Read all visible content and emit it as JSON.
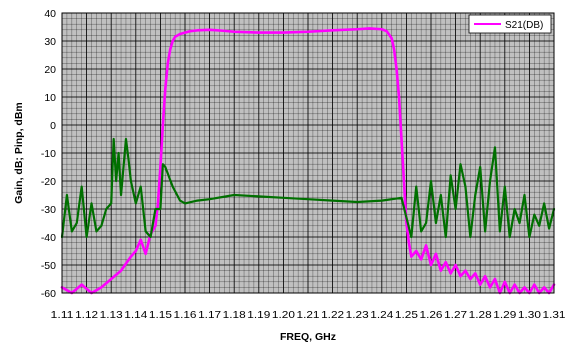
{
  "chart_data": {
    "type": "line",
    "title": "",
    "xlabel": "FREQ, GHz",
    "ylabel": "Gain, dB; Pinp, dBm",
    "xlim": [
      1.11,
      1.31
    ],
    "ylim": [
      -60,
      40
    ],
    "y_ticks": [
      40,
      30,
      20,
      10,
      0,
      -10,
      -20,
      -30,
      -40,
      -50,
      -60
    ],
    "x_ticks": [
      "1.11",
      "1.12",
      "1.13",
      "1.14",
      "1.15",
      "1.16",
      "1.17",
      "1.18",
      "1.19",
      "1.20",
      "1.21",
      "1.22",
      "1.23",
      "1.24",
      "1.25",
      "1.26",
      "1.27",
      "1.28",
      "1.29",
      "1.30",
      "1.31"
    ],
    "x_minor_step": 0.002,
    "y_minor_step": 2,
    "grid": true,
    "plot_background": "#c0c0c0",
    "grid_color": "#000000",
    "legend": {
      "placement": "top-right",
      "entries": [
        "S21(DB)"
      ]
    },
    "series": [
      {
        "name": "S21(DB)",
        "color": "#ff00ff",
        "x": [
          1.11,
          1.114,
          1.118,
          1.122,
          1.126,
          1.13,
          1.134,
          1.138,
          1.14,
          1.142,
          1.144,
          1.146,
          1.148,
          1.149,
          1.15,
          1.151,
          1.152,
          1.153,
          1.154,
          1.155,
          1.156,
          1.158,
          1.16,
          1.162,
          1.165,
          1.17,
          1.175,
          1.18,
          1.19,
          1.2,
          1.21,
          1.22,
          1.23,
          1.235,
          1.24,
          1.242,
          1.244,
          1.245,
          1.246,
          1.247,
          1.248,
          1.249,
          1.25,
          1.251,
          1.252,
          1.254,
          1.256,
          1.258,
          1.26,
          1.262,
          1.264,
          1.266,
          1.268,
          1.27,
          1.272,
          1.274,
          1.276,
          1.278,
          1.28,
          1.282,
          1.284,
          1.286,
          1.288,
          1.29,
          1.292,
          1.294,
          1.296,
          1.298,
          1.3,
          1.302,
          1.304,
          1.306,
          1.308,
          1.31
        ],
        "y": [
          -58,
          -60,
          -57,
          -60,
          -58,
          -55,
          -52,
          -47,
          -45,
          -41,
          -46,
          -39,
          -36,
          -28,
          -15,
          0,
          13,
          22,
          27,
          30,
          31.5,
          32.5,
          33,
          33.5,
          33.8,
          34,
          33.7,
          33.3,
          33,
          33,
          33.3,
          33.8,
          34.2,
          34.5,
          34.2,
          33.5,
          31,
          27,
          20,
          10,
          -5,
          -20,
          -35,
          -42,
          -47,
          -45,
          -48,
          -43,
          -50,
          -46,
          -52,
          -49,
          -53,
          -50,
          -54,
          -52,
          -55,
          -53,
          -57,
          -54,
          -58,
          -55,
          -60,
          -56,
          -60,
          -57,
          -60,
          -58,
          -60,
          -57,
          -60,
          -58,
          -60,
          -57
        ]
      },
      {
        "name": "",
        "color": "#007000",
        "x": [
          1.11,
          1.112,
          1.114,
          1.116,
          1.118,
          1.12,
          1.122,
          1.124,
          1.126,
          1.128,
          1.13,
          1.131,
          1.132,
          1.133,
          1.134,
          1.135,
          1.136,
          1.137,
          1.138,
          1.14,
          1.142,
          1.144,
          1.146,
          1.148,
          1.15,
          1.151,
          1.152,
          1.155,
          1.158,
          1.16,
          1.165,
          1.17,
          1.18,
          1.19,
          1.2,
          1.21,
          1.22,
          1.23,
          1.24,
          1.248,
          1.252,
          1.254,
          1.256,
          1.258,
          1.26,
          1.262,
          1.264,
          1.266,
          1.268,
          1.27,
          1.272,
          1.274,
          1.276,
          1.278,
          1.28,
          1.282,
          1.284,
          1.286,
          1.288,
          1.29,
          1.292,
          1.294,
          1.296,
          1.298,
          1.3,
          1.302,
          1.304,
          1.306,
          1.308,
          1.31
        ],
        "y": [
          -40,
          -25,
          -38,
          -35,
          -22,
          -40,
          -28,
          -38,
          -36,
          -30,
          -28,
          -5,
          -20,
          -10,
          -25,
          -15,
          -5,
          -12,
          -20,
          -28,
          -22,
          -38,
          -40,
          -30,
          -30,
          -14,
          -15,
          -22,
          -27,
          -28,
          -27,
          -26.5,
          -25,
          -25.5,
          -26,
          -26.5,
          -27,
          -27.5,
          -27,
          -26,
          -40,
          -22,
          -38,
          -35,
          -20,
          -35,
          -25,
          -40,
          -18,
          -30,
          -14,
          -22,
          -40,
          -25,
          -15,
          -38,
          -20,
          -8,
          -38,
          -22,
          -40,
          -30,
          -35,
          -25,
          -40,
          -32,
          -36,
          -28,
          -37,
          -30
        ]
      }
    ]
  }
}
